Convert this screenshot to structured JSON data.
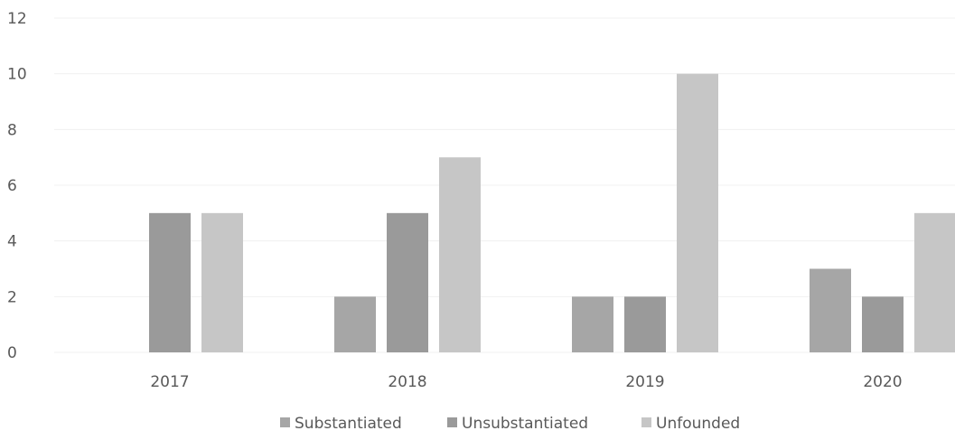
{
  "chart_data": {
    "type": "bar",
    "categories": [
      "2017",
      "2018",
      "2019",
      "2020"
    ],
    "series": [
      {
        "name": "Substantiated",
        "values": [
          0,
          2,
          2,
          3
        ],
        "color": "#a6a6a6"
      },
      {
        "name": "Unsubstantiated",
        "values": [
          5,
          5,
          2,
          2
        ],
        "color": "#9a9a9a"
      },
      {
        "name": "Unfounded",
        "values": [
          5,
          7,
          10,
          5
        ],
        "color": "#c6c6c6"
      }
    ],
    "yticks": [
      "0",
      "2",
      "4",
      "6",
      "8",
      "10",
      "12"
    ],
    "ylim": [
      0,
      12
    ],
    "grid": true,
    "legend": "bottom-center"
  }
}
